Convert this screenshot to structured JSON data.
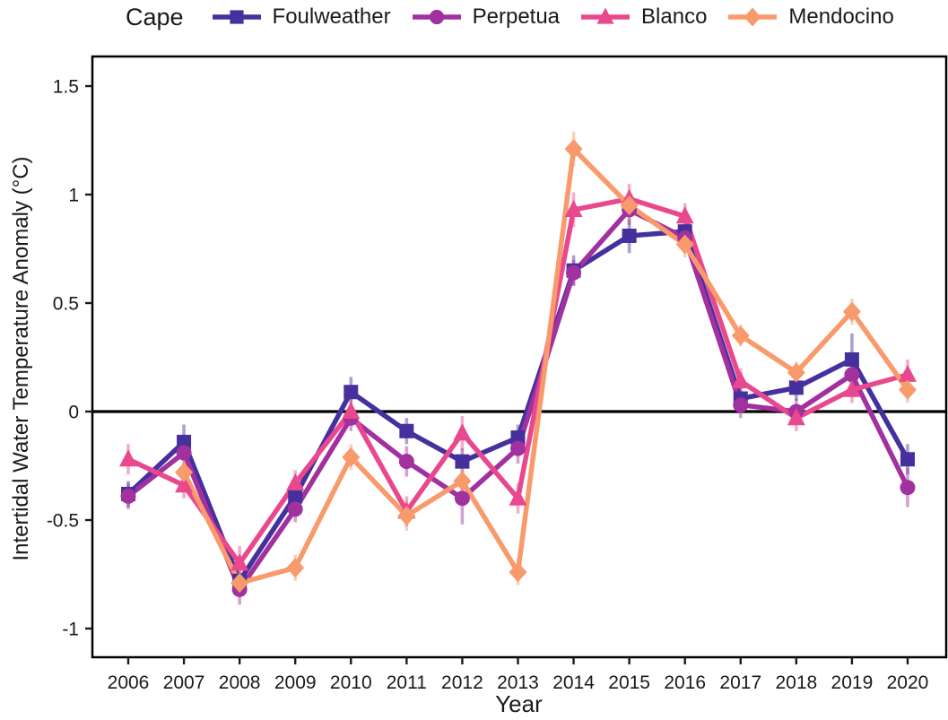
{
  "legend": {
    "title": "Cape",
    "items": [
      {
        "label": "Foulweather",
        "marker": "square",
        "color": "#46309D"
      },
      {
        "label": "Perpetua",
        "marker": "circle",
        "color": "#A1319E"
      },
      {
        "label": "Blanco",
        "marker": "triangle",
        "color": "#E9488E"
      },
      {
        "label": "Mendocino",
        "marker": "diamond",
        "color": "#F99A6D"
      }
    ]
  },
  "chart_data": {
    "type": "line",
    "title": "",
    "xlabel": "Year",
    "ylabel": "Intertidal Water Temperature Anomaly (°C)",
    "x": [
      2006,
      2007,
      2008,
      2009,
      2010,
      2011,
      2012,
      2013,
      2014,
      2015,
      2016,
      2017,
      2018,
      2019,
      2020
    ],
    "xtick_labels": [
      "2006",
      "2007",
      "2008",
      "2009",
      "2010",
      "2011",
      "2012",
      "2013",
      "2014",
      "2015",
      "2016",
      "2017",
      "2018",
      "2019",
      "2020"
    ],
    "yticks": [
      1.5,
      1,
      0.5,
      0,
      -0.5,
      -1
    ],
    "ytick_labels": [
      "1.5",
      "1",
      "0.5",
      "0",
      "-0.5",
      "-1"
    ],
    "ylim": [
      -1.13,
      1.64
    ],
    "grid": false,
    "zero_line": true,
    "legend_position": "top",
    "series": [
      {
        "name": "Foulweather",
        "marker": "square",
        "color": "#46309D",
        "values": [
          -0.38,
          -0.14,
          -0.78,
          -0.39,
          0.09,
          -0.09,
          -0.23,
          -0.12,
          0.65,
          0.81,
          0.83,
          0.06,
          0.11,
          0.24,
          -0.22
        ],
        "errors": [
          0.06,
          0.08,
          0.07,
          0.06,
          0.07,
          0.06,
          0.06,
          0.06,
          0.07,
          0.08,
          0.06,
          0.06,
          0.06,
          0.12,
          0.07
        ]
      },
      {
        "name": "Perpetua",
        "marker": "circle",
        "color": "#A1319E",
        "values": [
          -0.39,
          -0.19,
          -0.82,
          -0.45,
          -0.03,
          -0.23,
          -0.4,
          -0.17,
          0.64,
          0.93,
          0.8,
          0.03,
          0.0,
          0.17,
          -0.35
        ],
        "errors": [
          0.06,
          0.06,
          0.07,
          0.06,
          0.06,
          0.07,
          0.12,
          0.07,
          0.06,
          0.07,
          0.06,
          0.06,
          0.06,
          0.08,
          0.09
        ]
      },
      {
        "name": "Blanco",
        "marker": "triangle",
        "color": "#E9488E",
        "values": [
          -0.22,
          -0.34,
          -0.7,
          -0.33,
          0.0,
          -0.46,
          -0.1,
          -0.4,
          0.93,
          0.98,
          0.9,
          0.14,
          -0.03,
          0.1,
          0.17
        ],
        "errors": [
          0.07,
          0.06,
          0.08,
          0.06,
          0.06,
          0.07,
          0.08,
          0.07,
          0.08,
          0.07,
          0.06,
          0.06,
          0.06,
          0.06,
          0.07
        ]
      },
      {
        "name": "Mendocino",
        "marker": "diamond",
        "color": "#F99A6D",
        "values": [
          null,
          -0.28,
          -0.79,
          -0.72,
          -0.21,
          -0.48,
          -0.32,
          -0.74,
          1.21,
          0.95,
          0.77,
          0.35,
          0.18,
          0.46,
          0.1
        ],
        "errors": [
          null,
          0.06,
          0.07,
          0.06,
          0.06,
          0.07,
          0.06,
          0.06,
          0.08,
          0.07,
          0.06,
          0.05,
          0.05,
          0.06,
          0.06
        ]
      }
    ]
  }
}
